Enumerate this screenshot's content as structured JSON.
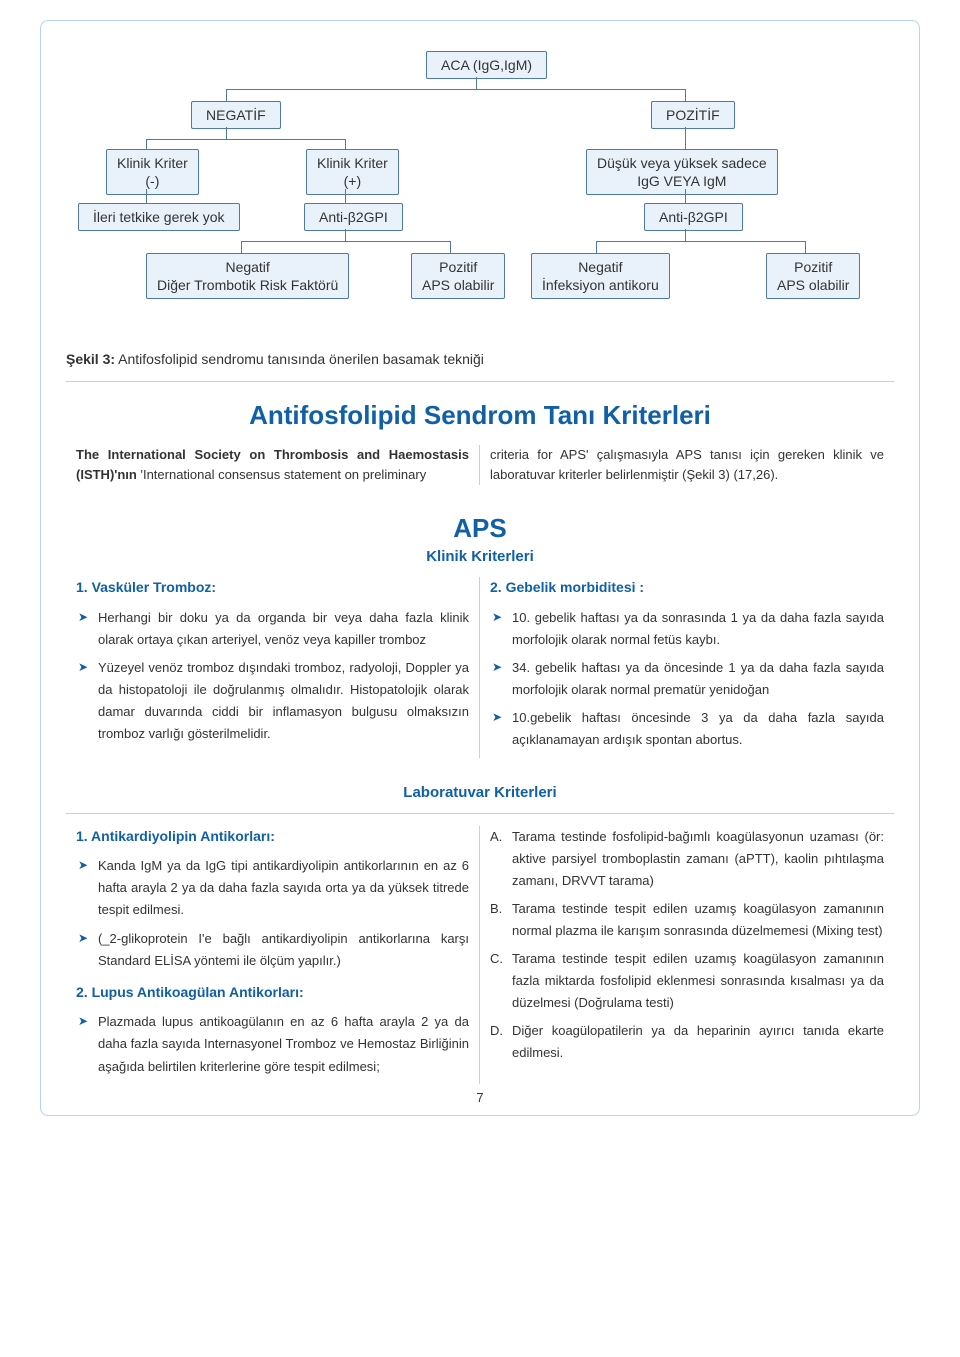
{
  "flow": {
    "root": "ACA (IgG,IgM)",
    "neg": "NEGATİF",
    "pos": "POZİTİF",
    "kk_neg": "Klinik Kriter\n(-)",
    "kk_pos": "Klinik Kriter\n(+)",
    "dusuk": "Düşük veya yüksek sadece\nIgG VEYA IgM",
    "ileri": "İleri tetkike gerek yok",
    "anti1": "Anti-β2GPI",
    "anti2": "Anti-β2GPI",
    "leaf1": "Negatif\nDiğer Trombotik Risk Faktörü",
    "leaf2": "Pozitif\nAPS olabilir",
    "leaf3": "Negatif\nİnfeksiyon antikoru",
    "leaf4": "Pozitif\nAPS olabilir",
    "caption": "Şekil 3: Antifosfolipid sendromu tanısında önerilen basamak tekniği"
  },
  "title_main": "Antifosfolipid Sendrom Tanı Kriterleri",
  "intro": {
    "left": "The International Society on Thrombosis and Haemostasis (ISTH)'nın 'International consensus statement on preliminary",
    "right": "criteria for APS' çalışmasıyla APS tanısı için gereken klinik ve laboratuvar kriterler belirlenmiştir (Şekil 3) (17,26)."
  },
  "aps_head": "APS",
  "klinik": {
    "sub": "Klinik Kriterleri",
    "left_title": "1. Vasküler Tromboz:",
    "left_items": [
      "Herhangi bir doku ya da organda bir veya daha fazla klinik olarak ortaya çıkan arteriyel, venöz veya kapiller tromboz",
      "Yüzeyel venöz tromboz dışındaki tromboz, radyoloji, Doppler ya da histopatoloji ile doğrulanmış olmalıdır. Histopatolojik olarak damar duvarında ciddi bir inflamasyon bulgusu olmaksızın tromboz varlığı gösterilmelidir."
    ],
    "right_title": "2. Gebelik morbiditesi :",
    "right_items": [
      "10. gebelik haftası ya da sonrasında 1 ya da daha fazla sayıda morfolojik olarak normal fetüs kaybı.",
      "34. gebelik haftası ya da öncesinde 1 ya da daha fazla sayıda morfolojik olarak normal prematür yenidoğan",
      "10.gebelik haftası öncesinde 3 ya da daha fazla sayıda açıklanamayan ardışık spontan abortus."
    ]
  },
  "lab": {
    "sub": "Laboratuvar Kriterleri",
    "left_title1": "1. Antikardiyolipin Antikorları:",
    "left_items1": [
      "Kanda IgM ya da IgG tipi antikardiyolipin antikorlarının en az 6 hafta arayla 2 ya da daha fazla sayıda orta ya da yüksek titrede tespit edilmesi.",
      "(_2-glikoprotein I'e bağlı antikardiyolipin antikorlarına karşı Standard ELİSA yöntemi ile ölçüm yapılır.)"
    ],
    "left_title2": "2. Lupus Antikoagülan Antikorları:",
    "left_items2": [
      "Plazmada lupus antikoagülanın en az 6 hafta arayla 2 ya da daha fazla sayıda Internasyonel Tromboz ve Hemostaz Birliğinin aşağıda belirtilen kriterlerine göre tespit edilmesi;"
    ],
    "right_items": [
      {
        "letter": "A.",
        "text": "Tarama testinde fosfolipid-bağımlı koagülasyonun uzaması (ör: aktive parsiyel tromboplastin zamanı (aPTT), kaolin pıhtılaşma zamanı, DRVVT tarama)"
      },
      {
        "letter": "B.",
        "text": "Tarama testinde tespit edilen uzamış koagülasyon zamanının normal plazma ile karışım sonrasında düzelmemesi (Mixing test)"
      },
      {
        "letter": "C.",
        "text": "Tarama testinde tespit edilen uzamış koagülasyon zamanının fazla miktarda fosfolipid eklenmesi sonrasında kısalması ya da düzelmesi (Doğrulama testi)"
      },
      {
        "letter": "D.",
        "text": "Diğer koagülopatilerin ya da heparinin ayırıcı tanıda ekarte edilmesi."
      }
    ]
  },
  "page_number": "7",
  "palette": {
    "box_bg": "#e9f2fb",
    "box_border": "#4f7aa3",
    "frame_border": "#b7d4ee",
    "accent": "#0f60a6",
    "text": "#333333"
  }
}
